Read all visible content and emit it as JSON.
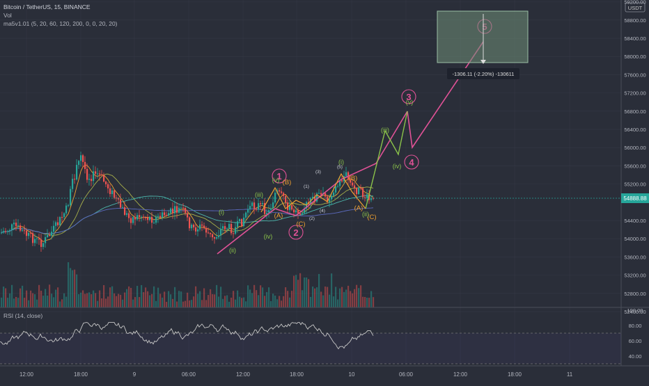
{
  "header": {
    "symbol": "Bitcoin / TetherUS, 15, BINANCE",
    "vol": "Vol",
    "ma": "ma5v1.01 (5, 20, 60, 120, 200, 0, 0, 20, 20)"
  },
  "currency_badge": "USDT",
  "price_axis": {
    "labels": [
      "59200.00",
      "58800.00",
      "58400.00",
      "58000.00",
      "57600.00",
      "57200.00",
      "56800.00",
      "56400.00",
      "56000.00",
      "55600.00",
      "55200.00",
      "54400.00",
      "54000.00",
      "53600.00",
      "53200.00",
      "52800.00",
      "52400.00"
    ],
    "values": [
      59200,
      58800,
      58400,
      58000,
      57600,
      57200,
      56800,
      56400,
      56000,
      55600,
      55200,
      54400,
      54000,
      53600,
      53200,
      52800,
      52400
    ]
  },
  "last_price": {
    "value": 54888.88,
    "label": "54888.88"
  },
  "time_axis": {
    "labels": [
      "12:00",
      "18:00",
      "9",
      "06:00",
      "12:00",
      "18:00",
      "10",
      "06:00",
      "12:00",
      "18:00",
      "11"
    ]
  },
  "rsi": {
    "title": "RSI (14, close)",
    "labels": [
      "100.00",
      "80.00",
      "60.00",
      "40.00"
    ],
    "values": [
      100,
      80,
      60,
      40
    ],
    "band": [
      30,
      70
    ]
  },
  "measure_tool": {
    "label": "-1306.11 (-2.20%) -130611"
  },
  "waves_pink": [
    "1",
    "2",
    "3",
    "4",
    "5"
  ],
  "waves_orange": [
    "(A)",
    "(B)",
    "(C)",
    "(A)",
    "(B)",
    "(C)"
  ],
  "waves_green": [
    "(i)",
    "(ii)",
    "(iii)",
    "(iv)",
    "(v)",
    "(i)",
    "(ii)",
    "(iii)",
    "(iv)",
    "(v)"
  ],
  "waves_small": [
    "(1)",
    "(2)",
    "(3)",
    "(4)",
    "(5)"
  ],
  "colors": {
    "background": "#2a2e39",
    "up": "#26a69a",
    "down": "#ef5350",
    "pink": "#e05296",
    "orange": "#f0a030",
    "green": "#8bc34a",
    "last_price": "#26a69a"
  },
  "chart_data": {
    "type": "candlestick",
    "title": "Bitcoin / TetherUS, 15, BINANCE",
    "xlabel": "",
    "ylabel": "",
    "ylim": [
      52300,
      59400
    ],
    "grid": true,
    "price_range_visible": [
      53500,
      56200
    ],
    "last_price": 54888.88,
    "projection_path_price": [
      54300,
      55500,
      57000,
      56100,
      58800
    ],
    "rsi_range": [
      40,
      80
    ]
  }
}
